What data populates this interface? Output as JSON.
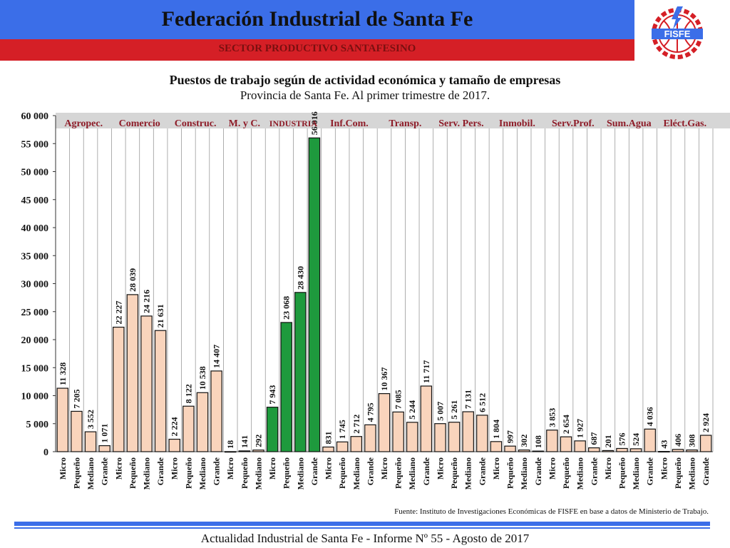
{
  "header": {
    "title": "Federación Industrial de Santa Fe",
    "subtitle": "SECTOR PRODUCTIVO SANTAFESINO",
    "logo_text": "FISFE"
  },
  "colors": {
    "blue": "#3b6ee8",
    "red": "#d51f26",
    "bar_default": "#f9d4bc",
    "bar_industry": "#1e9a3d"
  },
  "chart_data": {
    "type": "bar",
    "title": "Puestos de trabajo según de actividad económica y tamaño de empresas",
    "subtitle": "Provincia de Santa Fe. Al primer trimestre de 2017.",
    "ylim": [
      0,
      60000
    ],
    "yticks": [
      0,
      5000,
      10000,
      15000,
      20000,
      25000,
      30000,
      35000,
      40000,
      45000,
      50000,
      55000,
      60000
    ],
    "ytick_labels": [
      "0",
      "5 000",
      "10 000",
      "15 000",
      "20 000",
      "25 000",
      "30 000",
      "35 000",
      "40 000",
      "45 000",
      "50 000",
      "55 000",
      "60 000"
    ],
    "sectors": [
      {
        "label": "Agropec.",
        "highlight": false
      },
      {
        "label": "Comercio",
        "highlight": false
      },
      {
        "label": "Construc.",
        "highlight": false
      },
      {
        "label": "M. y C.",
        "highlight": false
      },
      {
        "label": "INDUSTRIA",
        "highlight": true
      },
      {
        "label": "Inf.Com.",
        "highlight": false
      },
      {
        "label": "Transp.",
        "highlight": false
      },
      {
        "label": "Serv. Pers.",
        "highlight": false
      },
      {
        "label": "Inmobil.",
        "highlight": false
      },
      {
        "label": "Serv.Prof.",
        "highlight": false
      },
      {
        "label": "Sum.Agua",
        "highlight": false
      },
      {
        "label": "Eléct.Gas.",
        "highlight": false
      }
    ],
    "sizes": [
      "Micro",
      "Pequeño",
      "Mediano",
      "Grande"
    ],
    "values": [
      [
        11328,
        7205,
        3552,
        1071
      ],
      [
        22227,
        28039,
        24216,
        21631
      ],
      [
        2224,
        8122,
        10538,
        14407
      ],
      [
        18,
        141,
        292,
        null
      ],
      [
        7943,
        23068,
        28430,
        56016
      ],
      [
        831,
        1745,
        2712,
        4795
      ],
      [
        10367,
        7085,
        5244,
        11717
      ],
      [
        5007,
        5261,
        7131,
        6512
      ],
      [
        1804,
        997,
        302,
        108
      ],
      [
        3853,
        2654,
        1927,
        687
      ],
      [
        201,
        576,
        524,
        4036
      ],
      [
        43,
        406,
        308,
        2924
      ]
    ],
    "value_labels": [
      [
        "11 328",
        "7 205",
        "3 552",
        "1 071"
      ],
      [
        "22 227",
        "28 039",
        "24 216",
        "21 631"
      ],
      [
        "2 224",
        "8 122",
        "10 538",
        "14 407"
      ],
      [
        "18",
        "141",
        "292",
        ""
      ],
      [
        "7 943",
        "23 068",
        "28 430",
        "56 016"
      ],
      [
        "831",
        "1 745",
        "2 712",
        "4 795"
      ],
      [
        "10 367",
        "7 085",
        "5 244",
        "11 717"
      ],
      [
        "5 007",
        "5 261",
        "7 131",
        "6 512"
      ],
      [
        "1 804",
        "997",
        "302",
        "108"
      ],
      [
        "3 853",
        "2 654",
        "1 927",
        "687"
      ],
      [
        "201",
        "576",
        "524",
        "4 036"
      ],
      [
        "43",
        "406",
        "308",
        "2 924"
      ]
    ],
    "x_tick_labels": [
      "Micro",
      "Pequeño",
      "Mediano",
      "Grande",
      "Micro",
      "Pequeño",
      "Mediano",
      "Grande",
      "Micro",
      "Pequeño",
      "Mediano",
      "Grande",
      "Micro",
      "Pequeño",
      "Mediano",
      "Micro",
      "Pequeño",
      "Mediano",
      "Grande",
      "Micro",
      "Pequeño",
      "Mediano",
      "Grande",
      "Micro",
      "Pequeño",
      "Mediano",
      "Grande",
      "Micro",
      "Pequeño",
      "Mediano",
      "Grande",
      "Micro",
      "Pequeño",
      "Mediano",
      "Grande",
      "Micro",
      "Pequeño",
      "Mediano",
      "Grande",
      "Micro",
      "Pequeño",
      "Mediano",
      "Grande",
      "Micro",
      "Pequeño",
      "Mediano",
      "Grande"
    ]
  },
  "source": "Fuente: Instituto de Investigaciones Económicas de FISFE en base a datos de Ministerio de Trabajo.",
  "footer": "Actualidad Industrial de Santa Fe - Informe Nº 55 - Agosto de 2017"
}
